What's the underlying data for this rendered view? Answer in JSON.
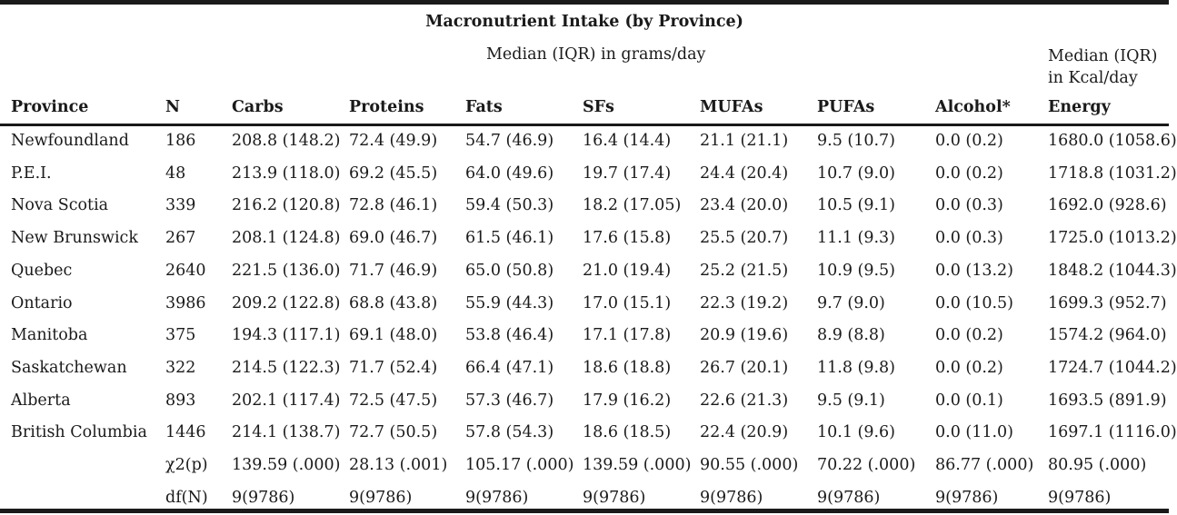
{
  "title": "Macronutrient Intake (by Province)",
  "subtitle": "Median (IQR) in grams/day",
  "energy_header": [
    "Median (IQR)",
    "in Kcal/day"
  ],
  "columns": [
    "Province",
    "N",
    "Carbs",
    "Proteins",
    "Fats",
    "SFs",
    "MUFAs",
    "PUFAs",
    "Alcohol*",
    "Energy"
  ],
  "rows": [
    [
      "Newfoundland",
      "186",
      "208.8 (148.2)",
      "72.4 (49.9)",
      "54.7 (46.9)",
      "16.4 (14.4)",
      "21.1 (21.1)",
      "9.5 (10.7)",
      "0.0 (0.2)",
      "1680.0 (1058.6)"
    ],
    [
      "P.E.I.",
      "48",
      "213.9 (118.0)",
      "69.2 (45.5)",
      "64.0 (49.6)",
      "19.7 (17.4)",
      "24.4 (20.4)",
      "10.7 (9.0)",
      "0.0 (0.2)",
      "1718.8 (1031.2)"
    ],
    [
      "Nova Scotia",
      "339",
      "216.2 (120.8)",
      "72.8 (46.1)",
      "59.4 (50.3)",
      "18.2 (17.05)",
      "23.4 (20.0)",
      "10.5 (9.1)",
      "0.0 (0.3)",
      "1692.0 (928.6)"
    ],
    [
      "New Brunswick",
      "267",
      "208.1 (124.8)",
      "69.0 (46.7)",
      "61.5 (46.1)",
      "17.6 (15.8)",
      "25.5 (20.7)",
      "11.1 (9.3)",
      "0.0 (0.3)",
      "1725.0 (1013.2)"
    ],
    [
      "Quebec",
      "2640",
      "221.5 (136.0)",
      "71.7 (46.9)",
      "65.0 (50.8)",
      "21.0 (19.4)",
      "25.2 (21.5)",
      "10.9 (9.5)",
      "0.0 (13.2)",
      "1848.2 (1044.3)"
    ],
    [
      "Ontario",
      "3986",
      "209.2 (122.8)",
      "68.8 (43.8)",
      "55.9 (44.3)",
      "17.0 (15.1)",
      "22.3 (19.2)",
      "9.7 (9.0)",
      "0.0 (10.5)",
      "1699.3 (952.7)"
    ],
    [
      "Manitoba",
      "375",
      "194.3 (117.1)",
      "69.1 (48.0)",
      "53.8 (46.4)",
      "17.1 (17.8)",
      "20.9 (19.6)",
      "8.9 (8.8)",
      "0.0 (0.2)",
      "1574.2 (964.0)"
    ],
    [
      "Saskatchewan",
      "322",
      "214.5 (122.3)",
      "71.7 (52.4)",
      "66.4 (47.1)",
      "18.6 (18.8)",
      "26.7 (20.1)",
      "11.8 (9.8)",
      "0.0 (0.2)",
      "1724.7 (1044.2)"
    ],
    [
      "Alberta",
      "893",
      "202.1 (117.4)",
      "72.5 (47.5)",
      "57.3 (46.7)",
      "17.9 (16.2)",
      "22.6 (21.3)",
      "9.5 (9.1)",
      "0.0 (0.1)",
      "1693.5 (891.9)"
    ],
    [
      "British Columbia",
      "1446",
      "214.1 (138.7)",
      "72.7 (50.5)",
      "57.8 (54.3)",
      "18.6 (18.5)",
      "22.4 (20.9)",
      "10.1 (9.6)",
      "0.0 (11.0)",
      "1697.1 (1116.0)"
    ],
    [
      "",
      "χ2(p)",
      "139.59 (.000)",
      "28.13 (.001)",
      "105.17 (.000)",
      "139.59 (.000)",
      "90.55 (.000)",
      "70.22 (.000)",
      "86.77 (.000)",
      "80.95 (.000)"
    ],
    [
      "",
      "df(N)",
      "9(9786)",
      "9(9786)",
      "9(9786)",
      "9(9786)",
      "9(9786)",
      "9(9786)",
      "9(9786)",
      "9(9786)"
    ]
  ]
}
